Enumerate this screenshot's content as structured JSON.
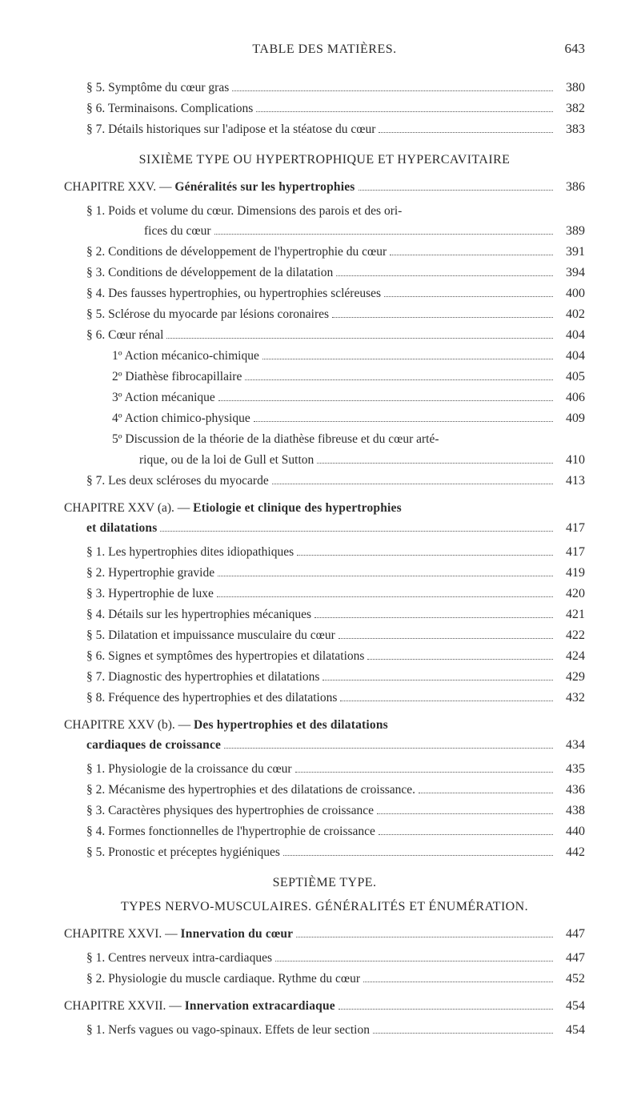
{
  "header": {
    "title": "TABLE DES MATIÈRES.",
    "page": "643"
  },
  "pre_lines": [
    {
      "label": "§ 5. Symptôme du cœur gras",
      "page": "380",
      "indent": "indent-1"
    },
    {
      "label": "§ 6. Terminaisons. Complications",
      "page": "382",
      "indent": "indent-1"
    },
    {
      "label": "§ 7. Détails historiques sur l'adipose et la stéatose du cœur",
      "page": "383",
      "indent": "indent-1"
    }
  ],
  "section1": "SIXIÈME TYPE OU HYPERTROPHIQUE ET HYPERCAVITAIRE",
  "chap25_head": {
    "prefix": "CHAPITRE XXV. — ",
    "bold": "Généralités sur les hypertrophies",
    "page": "386"
  },
  "chap25_body": [
    {
      "label": "§ 1. Poids et volume du cœur. Dimensions des parois et des ori-",
      "page": "",
      "indent": "indent-1",
      "noleaders": true
    },
    {
      "label": "fices du cœur",
      "page": "389",
      "indent": "indent-1c"
    },
    {
      "label": "§ 2. Conditions de développement de l'hypertrophie du cœur",
      "page": "391",
      "indent": "indent-1"
    },
    {
      "label": "§ 3. Conditions de développement de la dilatation",
      "page": "394",
      "indent": "indent-1"
    },
    {
      "label": "§ 4. Des fausses hypertrophies, ou hypertrophies scléreuses",
      "page": "400",
      "indent": "indent-1"
    },
    {
      "label": "§ 5. Sclérose du myocarde par lésions coronaires",
      "page": "402",
      "indent": "indent-1"
    },
    {
      "label": "§ 6. Cœur rénal",
      "page": "404",
      "indent": "indent-1"
    },
    {
      "label": "1º Action mécanico-chimique",
      "page": "404",
      "indent": "indent-2"
    },
    {
      "label": "2º Diathèse fibrocapillaire",
      "page": "405",
      "indent": "indent-2"
    },
    {
      "label": "3º Action mécanique",
      "page": "406",
      "indent": "indent-2"
    },
    {
      "label": "4º Action chimico-physique",
      "page": "409",
      "indent": "indent-2"
    },
    {
      "label": "5º Discussion de la théorie de la diathèse fibreuse et du cœur arté-",
      "page": "",
      "indent": "indent-2",
      "noleaders": true
    },
    {
      "label": "rique, ou de la loi de Gull et Sutton",
      "page": "410",
      "indent": "indent-2b"
    },
    {
      "label": "§ 7. Les deux scléroses du myocarde",
      "page": "413",
      "indent": "indent-1"
    }
  ],
  "chap25a_head": {
    "prefix": "CHAPITRE XXV (a). — ",
    "bold": "Etiologie et clinique des hypertrophies",
    "line2bold": "et dilatations",
    "page": "417"
  },
  "chap25a_body": [
    {
      "label": "§ 1. Les hypertrophies dites idiopathiques",
      "page": "417",
      "indent": "indent-1"
    },
    {
      "label": "§ 2. Hypertrophie gravide",
      "page": "419",
      "indent": "indent-1"
    },
    {
      "label": "§ 3. Hypertrophie de luxe",
      "page": "420",
      "indent": "indent-1"
    },
    {
      "label": "§ 4. Détails sur les hypertrophies mécaniques",
      "page": "421",
      "indent": "indent-1"
    },
    {
      "label": "§ 5. Dilatation et impuissance musculaire du cœur",
      "page": "422",
      "indent": "indent-1"
    },
    {
      "label": "§ 6. Signes et symptômes des hypertropies et dilatations",
      "page": "424",
      "indent": "indent-1"
    },
    {
      "label": "§ 7. Diagnostic des hypertrophies et dilatations",
      "page": "429",
      "indent": "indent-1"
    },
    {
      "label": "§ 8. Fréquence des hypertrophies et des dilatations",
      "page": "432",
      "indent": "indent-1"
    }
  ],
  "chap25b_head": {
    "prefix": "CHAPITRE XXV (b). — ",
    "bold": "Des hypertrophies et des dilatations",
    "line2bold": "cardiaques de croissance",
    "page": "434"
  },
  "chap25b_body": [
    {
      "label": "§ 1. Physiologie de la croissance du cœur",
      "page": "435",
      "indent": "indent-1"
    },
    {
      "label": "§ 2. Mécanisme des hypertrophies et des dilatations de croissance.",
      "page": "436",
      "indent": "indent-1"
    },
    {
      "label": "§ 3. Caractères physiques des hypertrophies de croissance",
      "page": "438",
      "indent": "indent-1"
    },
    {
      "label": "§ 4. Formes fonctionnelles de l'hypertrophie de croissance",
      "page": "440",
      "indent": "indent-1"
    },
    {
      "label": "§ 5. Pronostic et préceptes hygiéniques",
      "page": "442",
      "indent": "indent-1"
    }
  ],
  "section2a": "SEPTIÈME TYPE.",
  "section2b": "TYPES NERVO-MUSCULAIRES. GÉNÉRALITÉS ET ÉNUMÉRATION.",
  "chap26_head": {
    "prefix": "CHAPITRE XXVI. — ",
    "bold": "Innervation du cœur",
    "page": "447"
  },
  "chap26_body": [
    {
      "label": "§ 1. Centres nerveux intra-cardiaques",
      "page": "447",
      "indent": "indent-1"
    },
    {
      "label": "§ 2. Physiologie du muscle cardiaque. Rythme du cœur",
      "page": "452",
      "indent": "indent-1"
    }
  ],
  "chap27_head": {
    "prefix": "CHAPITRE XXVII. — ",
    "bold": "Innervation extracardiaque",
    "page": "454"
  },
  "chap27_body": [
    {
      "label": "§ 1. Nerfs vagues ou vago-spinaux. Effets de leur section",
      "page": "454",
      "indent": "indent-1"
    }
  ]
}
